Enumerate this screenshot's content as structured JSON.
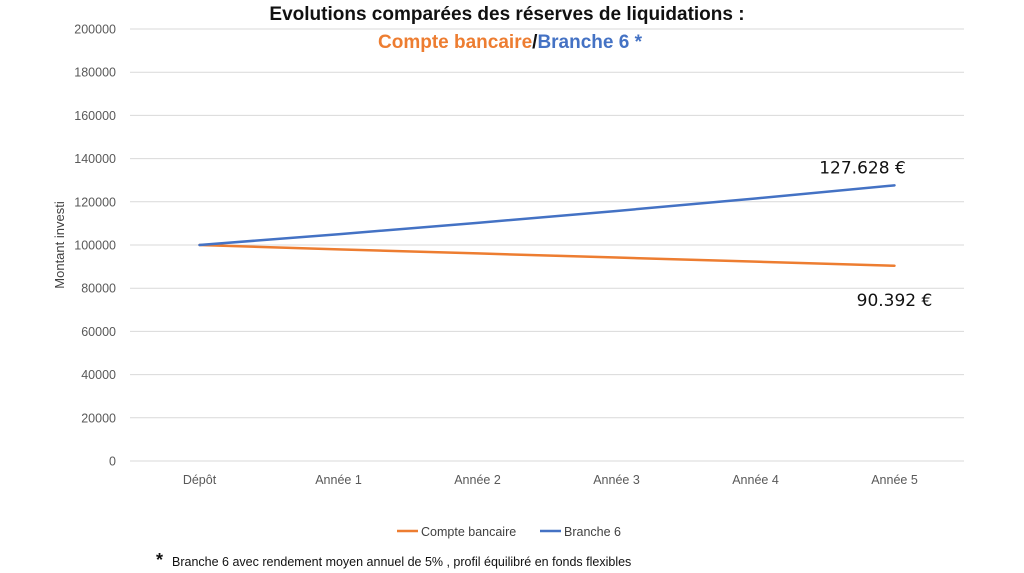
{
  "colors": {
    "compte": "#ED7D31",
    "branche": "#4472C4",
    "grid": "#D9D9D9",
    "tick": "#595959"
  },
  "footnote": {
    "marker": "*",
    "text": "Branche 6 avec rendement moyen annuel de 5% , profil équilibré en fonds flexibles"
  },
  "chart_data": {
    "type": "line",
    "title": "Evolutions comparées des réserves de liquidations :",
    "subtitle": {
      "part1": "Compte bancaire",
      "sep": "/",
      "part2": "Branche 6 *"
    },
    "ylabel": "Montant investi",
    "xlabel": "",
    "ylim": [
      0,
      200000
    ],
    "yticks": [
      "0",
      "20000",
      "40000",
      "60000",
      "80000",
      "100000",
      "120000",
      "140000",
      "160000",
      "180000",
      "200000"
    ],
    "categories": [
      "Dépôt",
      "Année 1",
      "Année 2",
      "Année 3",
      "Année 4",
      "Année 5"
    ],
    "grid": true,
    "legend_position": "bottom",
    "series": [
      {
        "name": "Compte bancaire",
        "color": "#ED7D31",
        "values": [
          100000,
          98000,
          96100,
          94200,
          92300,
          90392
        ],
        "end_label": "90.392 €"
      },
      {
        "name": "Branche 6",
        "color": "#4472C4",
        "values": [
          100000,
          105000,
          110250,
          115763,
          121551,
          127628
        ],
        "end_label": "127.628 €"
      }
    ]
  }
}
